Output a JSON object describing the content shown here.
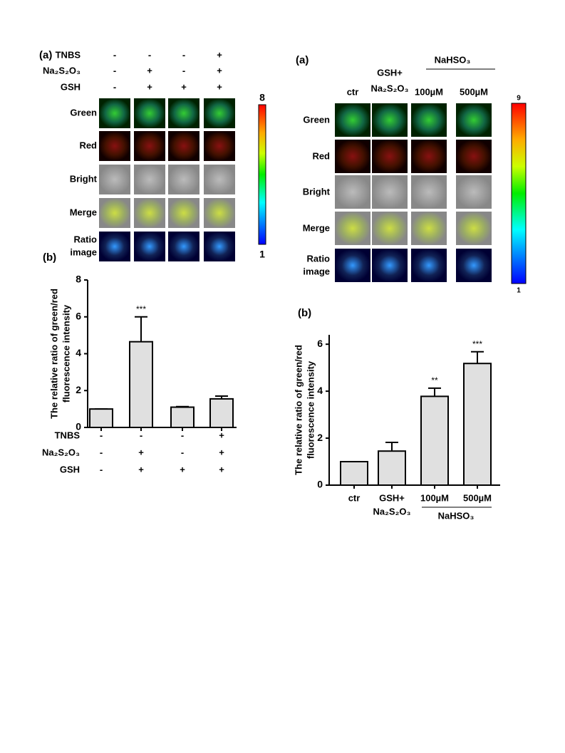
{
  "panels": [
    {
      "label": "(a)",
      "condition_rows": [
        {
          "name": "TNBS",
          "signs": [
            "-",
            "-",
            "-",
            "+"
          ]
        },
        {
          "name": "Na₂S₂O₃",
          "signs": [
            "-",
            "+",
            "-",
            "+"
          ]
        },
        {
          "name": "GSH",
          "signs": [
            "-",
            "+",
            "+",
            "+"
          ]
        }
      ],
      "rows": [
        "Green",
        "Red",
        "Bright",
        "Merge",
        [
          "Ratio",
          "image"
        ]
      ],
      "colorbar": {
        "max": 8,
        "min": 1
      }
    },
    {
      "label": "(a)",
      "columns": [
        "ctr",
        [
          "GSH+",
          "Na₂S₂O₃"
        ],
        "100µM",
        "500µM"
      ],
      "column_group": "NaHSO₃",
      "rows": [
        "Green",
        "Red",
        "Bright",
        "Merge",
        [
          "Ratio",
          "image"
        ]
      ],
      "colorbar": {
        "max": 9,
        "min": 1
      }
    }
  ],
  "chart_data": [
    {
      "type": "bar",
      "label": "(b)",
      "ylabel": [
        "The relative ratio of green/red",
        "fluorescence intensity"
      ],
      "condition_rows": [
        {
          "name": "TNBS",
          "signs": [
            "-",
            "-",
            "-",
            "+"
          ]
        },
        {
          "name": "Na₂S₂O₃",
          "signs": [
            "-",
            "+",
            "-",
            "+"
          ]
        },
        {
          "name": "GSH",
          "signs": [
            "-",
            "+",
            "+",
            "+"
          ]
        }
      ],
      "values": [
        1,
        4.65,
        1.1,
        1.55
      ],
      "errors": [
        0,
        1.35,
        0.03,
        0.15
      ],
      "annotations": [
        null,
        "***",
        null,
        null
      ],
      "color": "#e0e0e0",
      "ylim": [
        0,
        8
      ],
      "yticks": [
        0,
        2,
        4,
        6,
        8
      ]
    },
    {
      "type": "bar",
      "label": "(b)",
      "ylabel": [
        "The relative ratio of green/red",
        "fluorescence intensity"
      ],
      "categories": [
        "ctr",
        [
          "GSH+",
          "Na₂S₂O₃"
        ],
        "100µM",
        "500µM"
      ],
      "category_group": "NaHSO₃",
      "values": [
        1,
        1.45,
        3.78,
        5.18
      ],
      "errors": [
        0,
        0.37,
        0.35,
        0.5
      ],
      "annotations": [
        null,
        null,
        "**",
        "***"
      ],
      "color": "#e0e0e0",
      "ylim": [
        0,
        6.4
      ],
      "yticks": [
        0,
        2,
        4,
        6
      ]
    }
  ]
}
